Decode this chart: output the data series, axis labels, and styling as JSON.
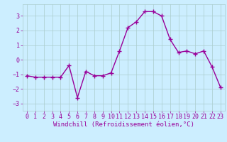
{
  "x": [
    0,
    1,
    2,
    3,
    4,
    5,
    6,
    7,
    8,
    9,
    10,
    11,
    12,
    13,
    14,
    15,
    16,
    17,
    18,
    19,
    20,
    21,
    22,
    23
  ],
  "y": [
    -1.1,
    -1.2,
    -1.2,
    -1.2,
    -1.2,
    -0.4,
    -2.6,
    -0.8,
    -1.1,
    -1.1,
    -0.9,
    0.6,
    2.2,
    2.6,
    3.3,
    3.3,
    3.0,
    1.4,
    0.5,
    0.6,
    0.4,
    0.6,
    -0.5,
    -1.9
  ],
  "line_color": "#990099",
  "marker": "+",
  "markersize": 4,
  "linewidth": 1.0,
  "bg_color": "#cceeff",
  "grid_color": "#aacccc",
  "xlabel": "Windchill (Refroidissement éolien,°C)",
  "xlabel_color": "#990099",
  "xlabel_fontsize": 6.5,
  "tick_fontsize": 6,
  "tick_color": "#990099",
  "yticks": [
    -3,
    -2,
    -1,
    0,
    1,
    2,
    3
  ],
  "xticks": [
    0,
    1,
    2,
    3,
    4,
    5,
    6,
    7,
    8,
    9,
    10,
    11,
    12,
    13,
    14,
    15,
    16,
    17,
    18,
    19,
    20,
    21,
    22,
    23
  ],
  "ylim": [
    -3.5,
    3.8
  ],
  "xlim": [
    -0.5,
    23.5
  ]
}
